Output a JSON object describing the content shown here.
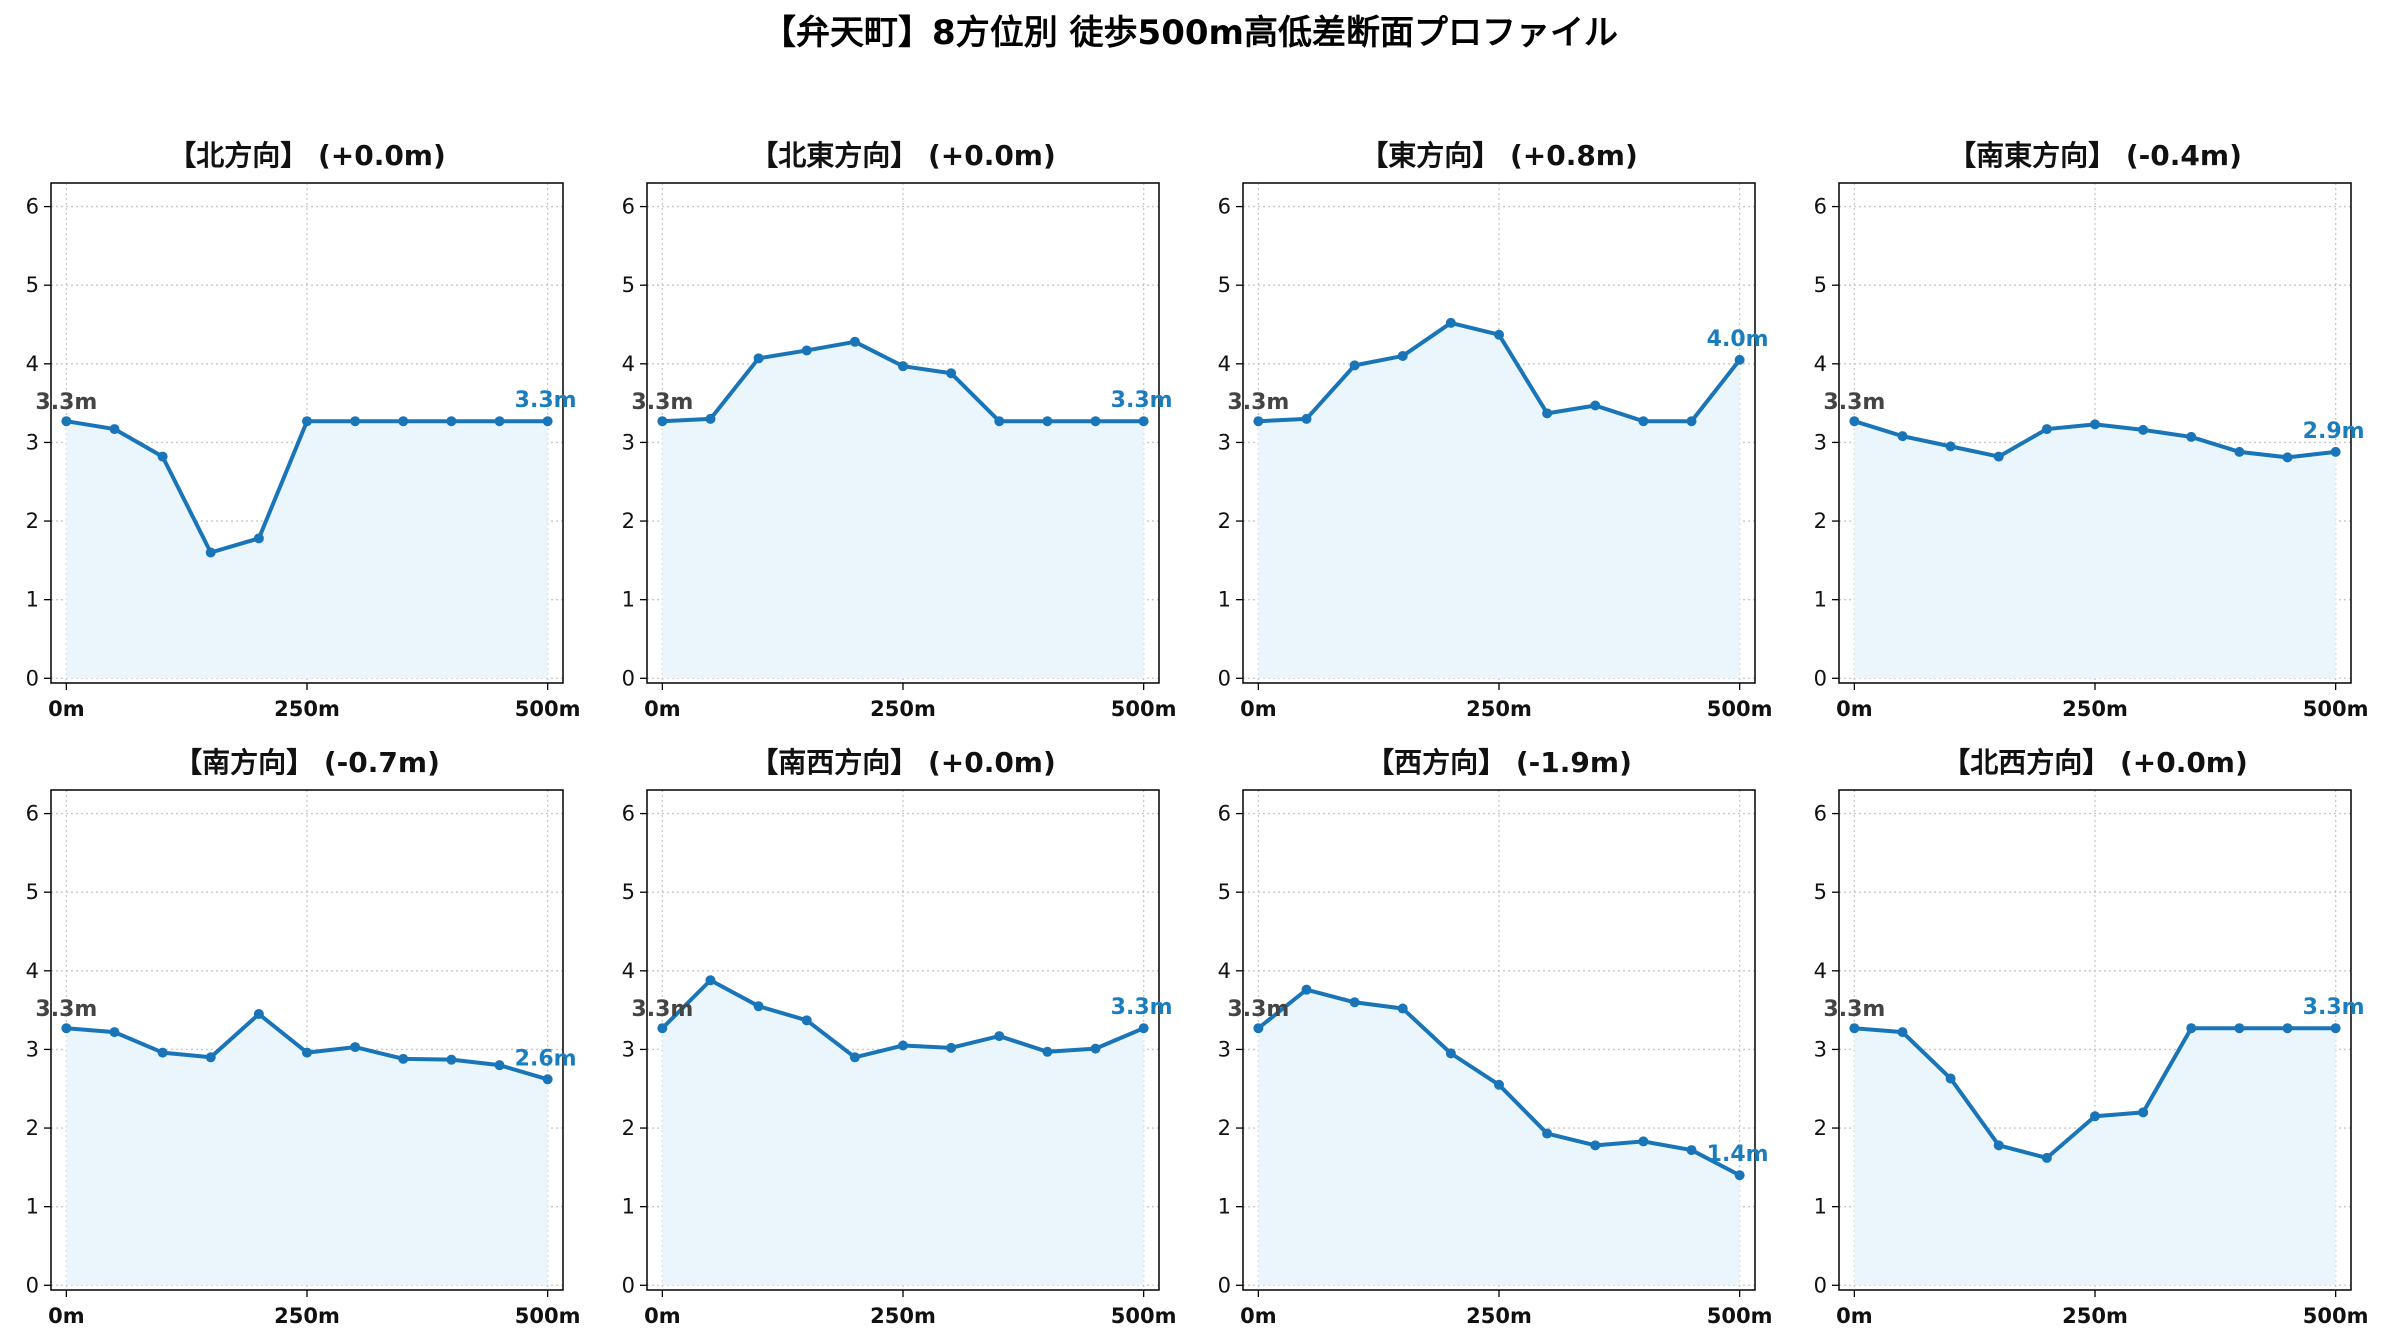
{
  "chart_data": {
    "type": "line",
    "title": "【弁天町】8方位別 徒歩500m高低差断面プロファイル",
    "line_color": "#1a75b8",
    "fill_color": "#eaf6fc",
    "grid": true,
    "ylim": [
      0,
      6.3
    ],
    "yticks": [
      "0",
      "1",
      "2",
      "3",
      "4",
      "5",
      "6"
    ],
    "xlim": [
      0,
      500
    ],
    "xticks": [
      "0m",
      "250m",
      "500m"
    ],
    "x": [
      0,
      50,
      100,
      150,
      200,
      250,
      300,
      350,
      400,
      450,
      500
    ],
    "panels": [
      {
        "title": "【北方向】 (+0.0m)",
        "start_label": "3.3m",
        "end_label": "3.3m",
        "values": [
          3.27,
          3.17,
          2.82,
          1.6,
          1.78,
          3.27,
          3.27,
          3.27,
          3.27,
          3.27,
          3.27
        ]
      },
      {
        "title": "【北東方向】 (+0.0m)",
        "start_label": "3.3m",
        "end_label": "3.3m",
        "values": [
          3.27,
          3.3,
          4.07,
          4.17,
          4.28,
          3.97,
          3.88,
          3.27,
          3.27,
          3.27,
          3.27
        ]
      },
      {
        "title": "【東方向】 (+0.8m)",
        "start_label": "3.3m",
        "end_label": "4.0m",
        "values": [
          3.27,
          3.3,
          3.98,
          4.1,
          4.52,
          4.37,
          3.37,
          3.47,
          3.27,
          3.27,
          4.05
        ]
      },
      {
        "title": "【南東方向】 (-0.4m)",
        "start_label": "3.3m",
        "end_label": "2.9m",
        "values": [
          3.27,
          3.08,
          2.95,
          2.82,
          3.17,
          3.23,
          3.16,
          3.07,
          2.88,
          2.81,
          2.88
        ]
      },
      {
        "title": "【南方向】 (-0.7m)",
        "start_label": "3.3m",
        "end_label": "2.6m",
        "values": [
          3.27,
          3.22,
          2.96,
          2.9,
          3.45,
          2.96,
          3.03,
          2.88,
          2.87,
          2.8,
          2.62
        ]
      },
      {
        "title": "【南西方向】 (+0.0m)",
        "start_label": "3.3m",
        "end_label": "3.3m",
        "values": [
          3.27,
          3.88,
          3.55,
          3.37,
          2.9,
          3.05,
          3.02,
          3.17,
          2.97,
          3.01,
          3.27
        ]
      },
      {
        "title": "【西方向】 (-1.9m)",
        "start_label": "3.3m",
        "end_label": "1.4m",
        "values": [
          3.27,
          3.76,
          3.6,
          3.52,
          2.95,
          2.55,
          1.93,
          1.78,
          1.83,
          1.72,
          1.4
        ]
      },
      {
        "title": "【北西方向】 (+0.0m)",
        "start_label": "3.3m",
        "end_label": "3.3m",
        "values": [
          3.27,
          3.22,
          2.63,
          1.78,
          1.62,
          2.15,
          2.2,
          3.27,
          3.27,
          3.27,
          3.27
        ]
      }
    ]
  }
}
